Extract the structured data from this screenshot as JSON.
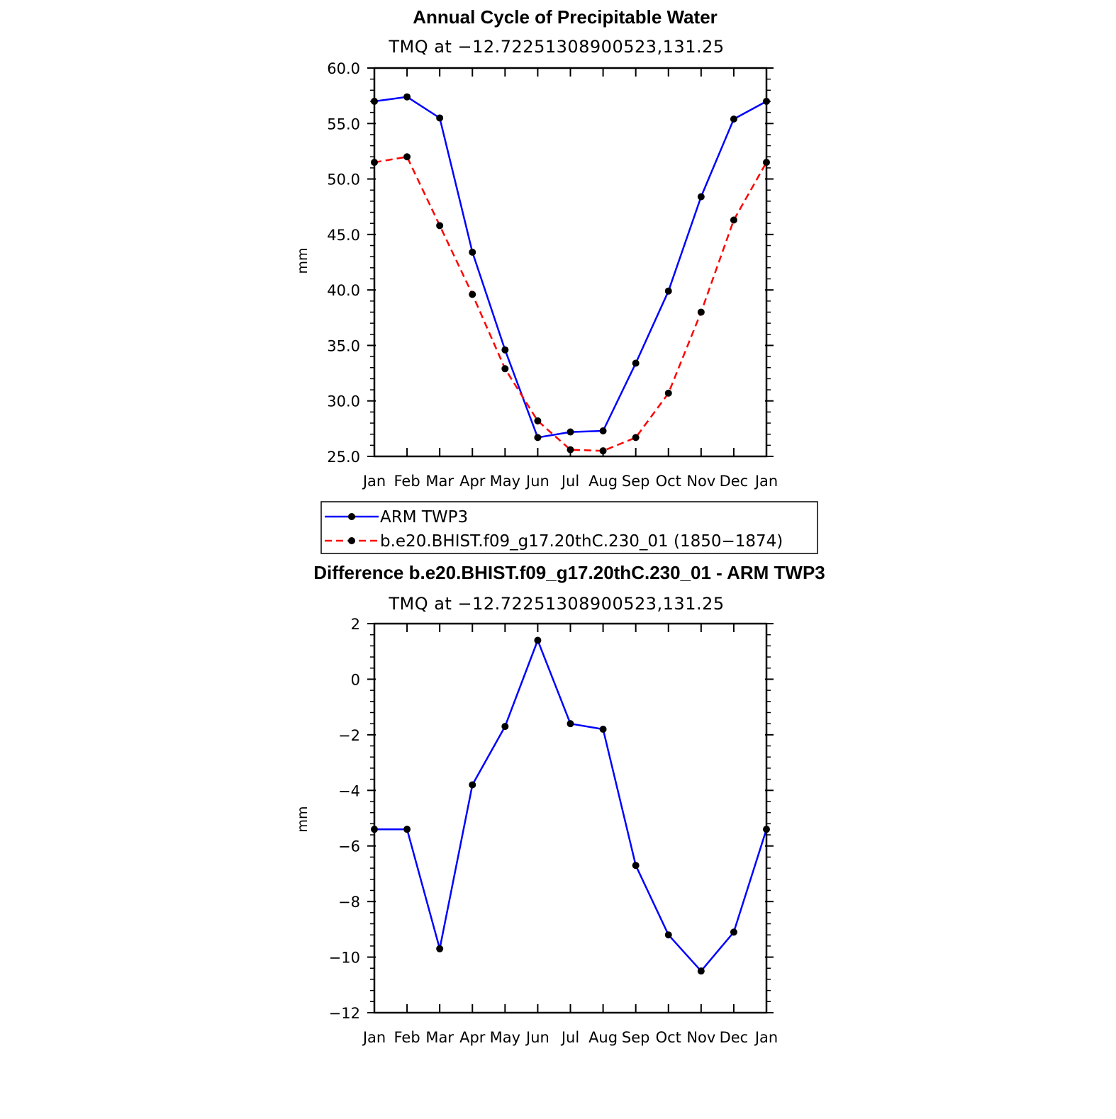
{
  "chart_data": [
    {
      "type": "line",
      "title": "Annual Cycle of Precipitable Water",
      "subtitle": "TMQ  at  −12.72251308900523,131.25",
      "xlabel": "",
      "ylabel": "mm",
      "categories": [
        "Jan",
        "Feb",
        "Mar",
        "Apr",
        "May",
        "Jun",
        "Jul",
        "Aug",
        "Sep",
        "Oct",
        "Nov",
        "Dec",
        "Jan"
      ],
      "ylim": [
        25.0,
        60.0
      ],
      "yticks": [
        25.0,
        30.0,
        35.0,
        40.0,
        45.0,
        50.0,
        55.0,
        60.0
      ],
      "ytick_labels": [
        "25.0",
        "30.0",
        "35.0",
        "40.0",
        "45.0",
        "50.0",
        "55.0",
        "60.0"
      ],
      "series": [
        {
          "name": "ARM  TWP3",
          "color": "#0000ff",
          "dash": "solid",
          "values": [
            57.0,
            57.4,
            55.5,
            43.4,
            34.6,
            26.7,
            27.2,
            27.3,
            33.4,
            39.9,
            48.4,
            55.4,
            57.0
          ]
        },
        {
          "name": "b.e20.BHIST.f09_g17.20thC.230_01  (1850−1874)",
          "color": "#ff0000",
          "dash": "dashed",
          "values": [
            51.5,
            52.0,
            45.8,
            39.6,
            32.9,
            28.2,
            25.6,
            25.5,
            26.7,
            30.7,
            38.0,
            46.3,
            51.5
          ]
        }
      ],
      "legend": "below"
    },
    {
      "type": "line",
      "title": "Difference b.e20.BHIST.f09_g17.20thC.230_01 - ARM TWP3",
      "subtitle": "TMQ  at  −12.72251308900523,131.25",
      "xlabel": "",
      "ylabel": "mm",
      "categories": [
        "Jan",
        "Feb",
        "Mar",
        "Apr",
        "May",
        "Jun",
        "Jul",
        "Aug",
        "Sep",
        "Oct",
        "Nov",
        "Dec",
        "Jan"
      ],
      "ylim": [
        -12,
        2
      ],
      "yticks": [
        -12,
        -10,
        -8,
        -6,
        -4,
        -2,
        0,
        2
      ],
      "ytick_labels": [
        "−12",
        "−10",
        "−8",
        "−6",
        "−4",
        "−2",
        "0",
        "2"
      ],
      "series": [
        {
          "name": "difference",
          "color": "#0000ff",
          "dash": "solid",
          "values": [
            -5.4,
            -5.4,
            -9.7,
            -3.8,
            -1.7,
            1.4,
            -1.6,
            -1.8,
            -6.7,
            -9.2,
            -10.5,
            -9.1,
            -5.4
          ]
        }
      ]
    }
  ],
  "styles": {
    "marker_color": "#000000",
    "axis_color": "#000000",
    "background": "#ffffff"
  }
}
